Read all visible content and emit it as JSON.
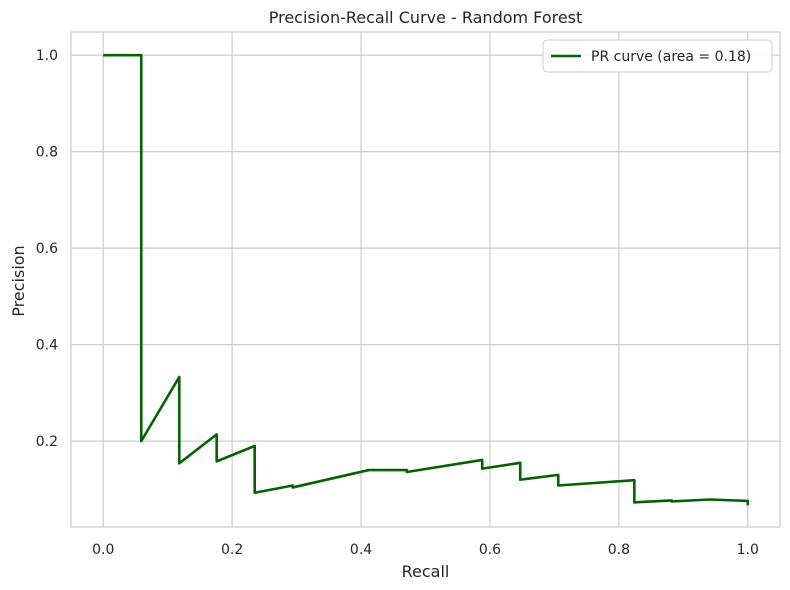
{
  "chart_data": {
    "type": "line",
    "title": "Precision-Recall Curve - Random Forest",
    "xlabel": "Recall",
    "ylabel": "Precision",
    "xlim": [
      -0.05,
      1.05
    ],
    "ylim": [
      0.022,
      1.048
    ],
    "xticks": [
      0.0,
      0.2,
      0.4,
      0.6,
      0.8,
      1.0
    ],
    "xtick_labels": [
      "0.0",
      "0.2",
      "0.4",
      "0.6",
      "0.8",
      "1.0"
    ],
    "yticks": [
      0.2,
      0.4,
      0.6,
      0.8,
      1.0
    ],
    "ytick_labels": [
      "0.2",
      "0.4",
      "0.6",
      "0.8",
      "1.0"
    ],
    "grid": true,
    "legend_position": "top-right",
    "series": [
      {
        "name": "PR curve (area = 0.18)",
        "color": "#006400",
        "x": [
          0.0,
          0.059,
          0.059,
          0.059,
          0.118,
          0.118,
          0.176,
          0.176,
          0.235,
          0.235,
          0.294,
          0.294,
          0.412,
          0.471,
          0.471,
          0.588,
          0.588,
          0.647,
          0.647,
          0.706,
          0.706,
          0.824,
          0.824,
          0.882,
          0.882,
          0.941,
          1.0,
          1.0
        ],
        "y": [
          1.0,
          1.0,
          1.0,
          0.2,
          0.333,
          0.154,
          0.214,
          0.158,
          0.19,
          0.093,
          0.108,
          0.104,
          0.14,
          0.14,
          0.136,
          0.161,
          0.143,
          0.155,
          0.12,
          0.13,
          0.108,
          0.119,
          0.073,
          0.077,
          0.075,
          0.079,
          0.076,
          0.067
        ]
      }
    ]
  }
}
